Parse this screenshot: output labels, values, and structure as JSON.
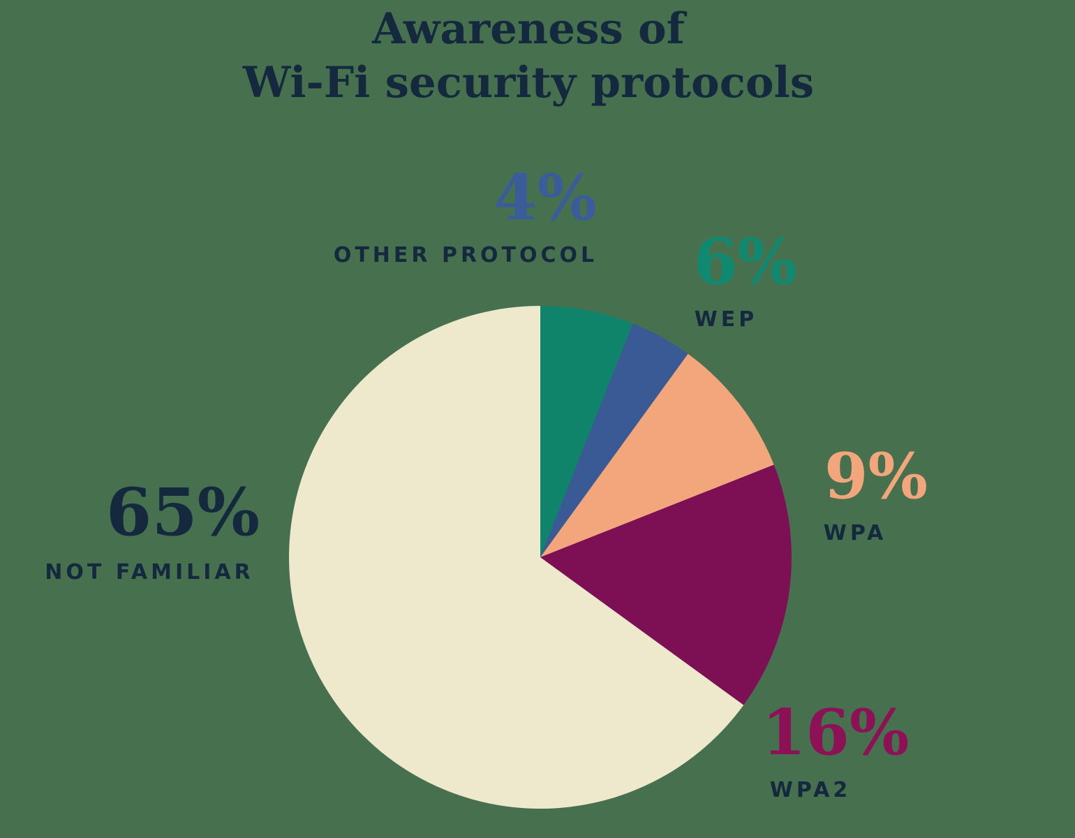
{
  "title": {
    "line1": "Awareness of",
    "line2": "Wi-Fi security protocols"
  },
  "colors": {
    "bg": "#47714E",
    "navy": "#14293E",
    "teal": "#10846B",
    "teal_text": "#0F8A70",
    "blue": "#395A94",
    "blue_text": "#3B5C9B",
    "orange": "#F3A57B",
    "orange_text": "#F3A57B",
    "magenta": "#7D1055",
    "magenta_text": "#8D1157",
    "cream": "#EEE8CD"
  },
  "chart_data": {
    "type": "pie",
    "title": "Awareness of Wi-Fi security protocols",
    "start_angle_deg": 0,
    "direction": "clockwise",
    "legend_position": "callouts-around-pie",
    "slices": [
      {
        "id": "wep",
        "label": "WEP",
        "value_pct": 6,
        "color": "#10846B",
        "label_color": "#0F8A70"
      },
      {
        "id": "other",
        "label": "OTHER PROTOCOL",
        "value_pct": 4,
        "color": "#395A94",
        "label_color": "#3B5C9B"
      },
      {
        "id": "wpa",
        "label": "WPA",
        "value_pct": 9,
        "color": "#F3A57B",
        "label_color": "#F3A57B"
      },
      {
        "id": "wpa2",
        "label": "WPA2",
        "value_pct": 16,
        "color": "#7D1055",
        "label_color": "#8D1157"
      },
      {
        "id": "not_familiar",
        "label": "NOT FAMILIAR",
        "value_pct": 65,
        "color": "#EEE8CD",
        "label_color": "#14293E"
      }
    ]
  },
  "callouts": {
    "other": {
      "pct": "4%",
      "name": "OTHER PROTOCOL"
    },
    "wep": {
      "pct": "6%",
      "name": "WEP"
    },
    "wpa": {
      "pct": "9%",
      "name": "WPA"
    },
    "wpa2": {
      "pct": "16%",
      "name": "WPA2"
    },
    "not_familiar": {
      "pct": "65%",
      "name": "NOT FAMILIAR"
    }
  }
}
